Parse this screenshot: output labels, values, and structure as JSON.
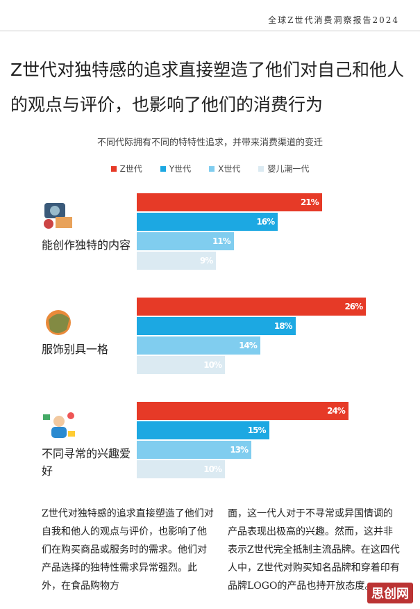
{
  "header": {
    "title": "全球Z世代消费洞察报告2024"
  },
  "article": {
    "title": "Z世代对独特感的追求直接塑造了他们对自己和他人的观点与评价，也影响了他们的消费行为",
    "columns": [
      "Z世代对独特感的追求直接塑造了他们对自我和他人的观点与评价，也影响了他们在购买商品或服务时的需求。他们对产品选择的独特性需求异常强烈。此外，在食品购物方",
      "面，这一代人对于不寻常或异国情调的产品表现出极高的兴趣。然而，这并非表示Z世代完全抵制主流品牌。在这四代人中，Z世代对购买知名品牌和穿着印有品牌LOGO的产品也持开放态度。"
    ]
  },
  "chart_data": {
    "type": "hbar",
    "title": "不同代际拥有不同的特特性追求，并带来消费渠道的变迁",
    "categories": [
      "能创作独特的内容",
      "服饰别具一格",
      "不同寻常的兴趣爱好"
    ],
    "series": [
      {
        "name": "Z世代",
        "color": "#e63a27",
        "values": [
          21,
          26,
          24
        ],
        "value_labels": [
          "21%",
          "26%",
          "24%"
        ]
      },
      {
        "name": "Y世代",
        "color": "#1ca8e2",
        "values": [
          16,
          18,
          15
        ],
        "value_labels": [
          "16%",
          "18%",
          "15%"
        ]
      },
      {
        "name": "X世代",
        "color": "#80cdef",
        "values": [
          11,
          14,
          13
        ],
        "value_labels": [
          "11%",
          "14%",
          "13%"
        ]
      },
      {
        "name": "婴儿潮一代",
        "color": "#dbeaf2",
        "values": [
          9,
          10,
          10
        ],
        "value_labels": [
          "9%",
          "10%",
          "10%"
        ]
      }
    ]
  },
  "watermark": "思创网"
}
